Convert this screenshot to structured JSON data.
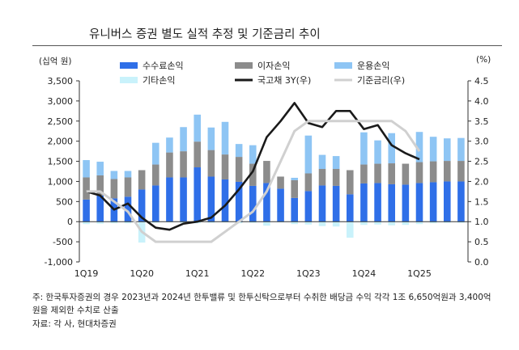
{
  "title": "유니버스 증권 별도 실적 추정 및 기준금리 추이",
  "left_unit": "(십억 원)",
  "right_unit": "(%)",
  "note": {
    "line1": "주: 한국투자증권의 경우 2023년과 2024년 한투밸류 및 한투신탁으로부터 수취한 배당금 수익 각각 1조 6,650억원과 3,400억",
    "line2": "원을 제외한 수치로 산출",
    "source": "자료: 각 사, 현대차증권"
  },
  "chart_data": {
    "type": "bar",
    "title": "유니버스 증권 별도 실적 추정 및 기준금리 추이",
    "categories": [
      "1Q19",
      "2Q19",
      "3Q19",
      "4Q19",
      "1Q20",
      "2Q20",
      "3Q20",
      "4Q20",
      "1Q21",
      "2Q21",
      "3Q21",
      "4Q21",
      "1Q22",
      "2Q22",
      "3Q22",
      "4Q22",
      "1Q23",
      "2Q23",
      "3Q23",
      "4Q23",
      "1Q24",
      "2Q24",
      "3Q24",
      "4Q24",
      "1Q25",
      "2Q25",
      "3Q25",
      "4Q25"
    ],
    "x_tick_labels": [
      "1Q19",
      "1Q20",
      "1Q21",
      "1Q22",
      "1Q23",
      "1Q24",
      "1Q25"
    ],
    "stacking": "stacked",
    "y_left": {
      "label": "(십억 원)",
      "range": [
        -1000,
        3500
      ],
      "ticks": [
        -1000,
        -500,
        0,
        500,
        1000,
        1500,
        2000,
        2500,
        3000,
        3500
      ]
    },
    "y_right": {
      "label": "(%)",
      "range": [
        0.0,
        4.5
      ],
      "ticks": [
        0.0,
        0.5,
        1.0,
        1.5,
        2.0,
        2.5,
        3.0,
        3.5,
        4.0,
        4.5
      ]
    },
    "series": [
      {
        "name": "수수료손익",
        "axis": "left",
        "kind": "bar",
        "color": "#2f6fe8",
        "values": [
          550,
          650,
          580,
          620,
          800,
          900,
          1100,
          1100,
          1350,
          1120,
          1050,
          990,
          890,
          960,
          820,
          590,
          760,
          900,
          890,
          680,
          950,
          960,
          930,
          920,
          960,
          980,
          1000,
          1000
        ]
      },
      {
        "name": "이자손익",
        "axis": "left",
        "kind": "bar",
        "color": "#8c8c8c",
        "values": [
          550,
          500,
          480,
          480,
          480,
          520,
          620,
          650,
          640,
          660,
          620,
          620,
          550,
          550,
          300,
          440,
          440,
          410,
          420,
          600,
          470,
          480,
          520,
          520,
          520,
          520,
          510,
          510
        ]
      },
      {
        "name": "운용손익",
        "axis": "left",
        "kind": "bar",
        "color": "#8ec5f4",
        "values": [
          430,
          340,
          200,
          160,
          0,
          540,
          370,
          600,
          670,
          560,
          810,
          320,
          460,
          0,
          0,
          60,
          940,
          350,
          320,
          0,
          800,
          580,
          750,
          0,
          750,
          610,
          560,
          570
        ]
      },
      {
        "name": "기타손익",
        "axis": "left",
        "kind": "bar",
        "color": "#c9f2fb",
        "values": [
          -60,
          -50,
          -40,
          -40,
          -520,
          -30,
          -20,
          -30,
          -40,
          -30,
          -20,
          -40,
          -30,
          -100,
          -20,
          -60,
          -70,
          -110,
          -120,
          -400,
          -80,
          -70,
          -90,
          -80,
          -60,
          -40,
          -30,
          -30
        ]
      },
      {
        "name": "국고채 3Y(우)",
        "axis": "right",
        "kind": "line",
        "color": "#1a1a1a",
        "values": [
          1.75,
          1.65,
          1.3,
          1.45,
          1.1,
          0.85,
          0.8,
          0.95,
          1.0,
          1.1,
          1.4,
          1.8,
          2.25,
          3.1,
          3.5,
          3.95,
          3.45,
          3.35,
          3.75,
          3.75,
          3.3,
          3.4,
          2.9,
          2.7,
          2.55,
          null,
          null,
          null
        ]
      },
      {
        "name": "기준금리(우)",
        "axis": "right",
        "kind": "line",
        "color": "#d0d0d0",
        "values": [
          1.75,
          1.75,
          1.5,
          1.25,
          0.75,
          0.5,
          0.5,
          0.5,
          0.5,
          0.5,
          0.75,
          1.0,
          1.25,
          1.75,
          2.5,
          3.25,
          3.5,
          3.5,
          3.5,
          3.5,
          3.5,
          3.5,
          3.5,
          3.25,
          2.75,
          null,
          null,
          null
        ]
      }
    ],
    "legend": {
      "placement": "top"
    },
    "grid": false
  }
}
